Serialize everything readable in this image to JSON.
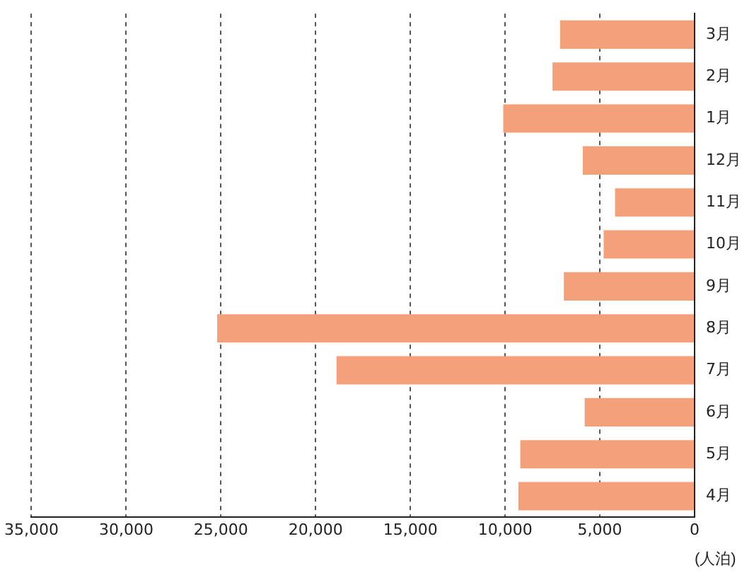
{
  "chart_data": {
    "type": "bar",
    "orientation": "horizontal",
    "xlabel": "(人泊)",
    "categories": [
      "3月",
      "2月",
      "1月",
      "12月",
      "11月",
      "10月",
      "9月",
      "8月",
      "7月",
      "6月",
      "5月",
      "4月"
    ],
    "values": [
      7100,
      7500,
      10100,
      5900,
      4200,
      4800,
      6900,
      25200,
      18900,
      5800,
      9200,
      9300
    ],
    "color": "#f4a07a",
    "xlim": [
      35000,
      0
    ],
    "xticks": [
      {
        "value": 35000,
        "label": "35,000"
      },
      {
        "value": 30000,
        "label": "30,000"
      },
      {
        "value": 25000,
        "label": "25,000"
      },
      {
        "value": 20000,
        "label": "20,000"
      },
      {
        "value": 15000,
        "label": "15,000"
      },
      {
        "value": 10000,
        "label": "10,000"
      },
      {
        "value": 5000,
        "label": "5,000"
      },
      0
    ],
    "grid": "x",
    "line_style": "dashed"
  }
}
